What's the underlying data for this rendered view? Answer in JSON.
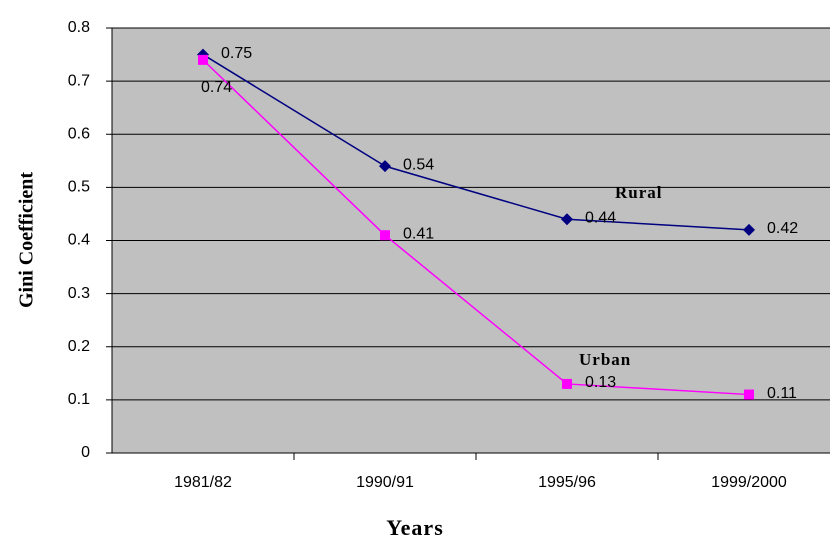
{
  "chart_data": {
    "type": "line",
    "x_label": "Years",
    "y_label": "Gini Coefficient",
    "categories": [
      "1981/82",
      "1990/91",
      "1995/96",
      "1999/2000"
    ],
    "series": [
      {
        "name": "Rural",
        "color": "#000080",
        "marker": "diamond",
        "values": [
          0.75,
          0.54,
          0.44,
          0.42
        ]
      },
      {
        "name": "Urban",
        "color": "#ff00ff",
        "marker": "square",
        "values": [
          0.74,
          0.41,
          0.13,
          0.11
        ]
      }
    ],
    "ylim": [
      0,
      0.8
    ],
    "yticks": [
      0,
      0.1,
      0.2,
      0.3,
      0.4,
      0.5,
      0.6,
      0.7,
      0.8
    ],
    "grid": true
  }
}
